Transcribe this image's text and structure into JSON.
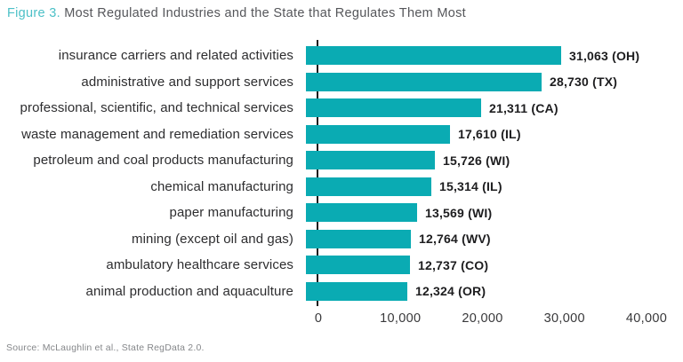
{
  "title": {
    "figure_label": "Figure 3.",
    "text": " Most Regulated Industries and the State that Regulates Them Most"
  },
  "source": "Source: McLaughlin et al., State RegData 2.0.",
  "colors": {
    "bar": "#0aabb3",
    "figure_label": "#4cc0c7",
    "title_text": "#55565a",
    "axis": "#1c1c1c"
  },
  "chart_data": {
    "type": "bar",
    "orientation": "horizontal",
    "title": "Figure 3. Most Regulated Industries and the State that Regulates Them Most",
    "categories": [
      "insurance carriers and related activities",
      "administrative and support services",
      "professional, scientific, and technical services",
      "waste management and remediation services",
      "petroleum and coal products manufacturing",
      "chemical manufacturing",
      "paper manufacturing",
      "mining (except oil and gas)",
      "ambulatory healthcare services",
      "animal production and aquaculture"
    ],
    "values": [
      31063,
      28730,
      21311,
      17610,
      15726,
      15314,
      13569,
      12764,
      12737,
      12324
    ],
    "states": [
      "OH",
      "TX",
      "CA",
      "IL",
      "WI",
      "IL",
      "WI",
      "WV",
      "CO",
      "OR"
    ],
    "value_labels": [
      "31,063 (OH)",
      "28,730 (TX)",
      "21,311 (CA)",
      "17,610 (IL)",
      "15,726 (WI)",
      "15,314 (IL)",
      "13,569 (WI)",
      "12,764 (WV)",
      "12,737 (CO)",
      "12,324 (OR)"
    ],
    "xlabel": "",
    "ylabel": "",
    "xlim": [
      0,
      40000
    ],
    "xticks": [
      0,
      10000,
      20000,
      30000,
      40000
    ],
    "xtick_labels": [
      "0",
      "10,000",
      "20,000",
      "30,000",
      "40,000"
    ],
    "grid": false,
    "legend": false
  }
}
